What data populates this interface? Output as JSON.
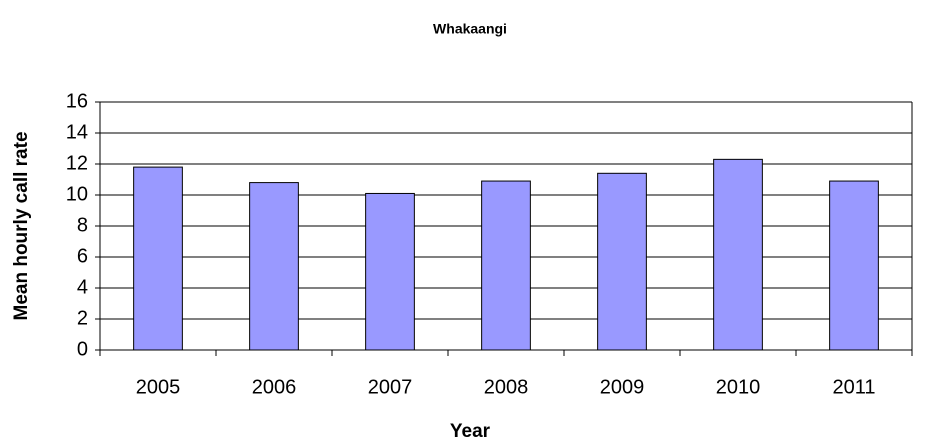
{
  "chart_data": {
    "type": "bar",
    "title": "Whakaangi",
    "x_label": "Year",
    "y_label": "Mean hourly call rate",
    "categories": [
      "2005",
      "2006",
      "2007",
      "2008",
      "2009",
      "2010",
      "2011"
    ],
    "values": [
      11.8,
      10.8,
      10.1,
      10.9,
      11.4,
      12.3,
      10.9
    ],
    "color": "#9999ff",
    "ylim": [
      0,
      16
    ],
    "yticks": [
      0,
      2,
      4,
      6,
      8,
      10,
      12,
      14,
      16
    ],
    "grid": true
  }
}
